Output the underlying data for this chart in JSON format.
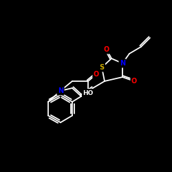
{
  "background_color": "#000000",
  "bond_color": "#ffffff",
  "atom_colors": {
    "O": "#ff0000",
    "N": "#0000ff",
    "S": "#ccaa00",
    "C": "#ffffff",
    "H": "#ffffff"
  },
  "figsize": [
    2.5,
    2.5
  ],
  "dpi": 100
}
